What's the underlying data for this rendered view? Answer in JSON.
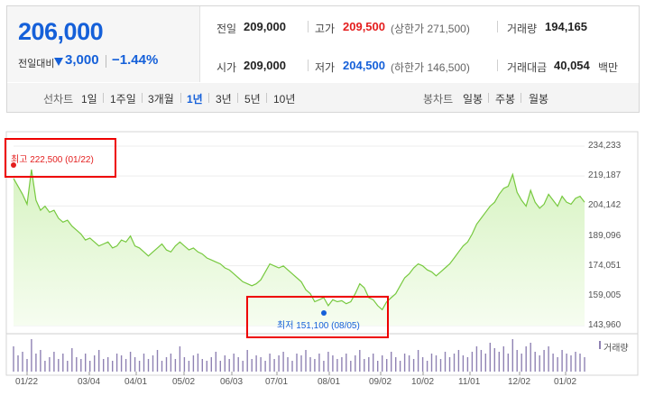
{
  "summary": {
    "price": "206,000",
    "change_label": "전일대비",
    "change_value": "3,000",
    "change_percent": "−1.44%",
    "prev_close_label": "전일",
    "prev_close": "209,000",
    "open_label": "시가",
    "open": "209,000",
    "high_label": "고가",
    "high": "209,500",
    "upper_limit": "(상한가 271,500)",
    "low_label": "저가",
    "low": "204,500",
    "lower_limit": "(하한가 146,500)",
    "volume_label": "거래량",
    "volume": "194,165",
    "amount_label": "거래대금",
    "amount": "40,054",
    "amount_unit": "백만"
  },
  "line_tabs": {
    "label": "선차트",
    "items": [
      "1일",
      "1주일",
      "3개월",
      "1년",
      "3년",
      "5년",
      "10년"
    ],
    "active": "1년"
  },
  "candle_tabs": {
    "label": "봉차트",
    "items": [
      "일봉",
      "주봉",
      "월봉"
    ]
  },
  "colors": {
    "up": "#e41e1e",
    "down": "#1560d9",
    "line": "#77c93f",
    "volume": "#8f82b3"
  },
  "chart_data": {
    "type": "area",
    "y_ticks": [
      "234,233",
      "219,187",
      "204,142",
      "189,096",
      "174,051",
      "159,005",
      "143,960"
    ],
    "ylim": [
      143960,
      234233
    ],
    "x_ticks": [
      "01/22",
      "03/04",
      "04/01",
      "05/02",
      "06/03",
      "07/01",
      "08/01",
      "09/02",
      "10/02",
      "11/01",
      "12/02",
      "01/02"
    ],
    "annotations": {
      "high": {
        "label": "최고",
        "value": "222,500",
        "date": "(01/22)"
      },
      "low": {
        "label": "최저",
        "value": "151,100",
        "date": "(08/05)"
      }
    },
    "volume_legend": "거래량",
    "series": [
      {
        "values": [
          218000,
          214000,
          210000,
          205000,
          222500,
          207000,
          202000,
          204000,
          201000,
          202000,
          198000,
          196000,
          197000,
          194000,
          192000,
          190000,
          187000,
          188000,
          186000,
          184000,
          185000,
          186000,
          183000,
          184000,
          187000,
          186000,
          189000,
          184000,
          183000,
          181000,
          179000,
          181000,
          183000,
          185000,
          182000,
          181000,
          184000,
          186000,
          184000,
          182000,
          183000,
          181000,
          180000,
          178000,
          177000,
          176000,
          175000,
          173000,
          172000,
          170000,
          168000,
          166000,
          165000,
          164000,
          165000,
          167000,
          171000,
          175000,
          174000,
          173000,
          174000,
          172000,
          170000,
          168000,
          166000,
          162000,
          160000,
          156000,
          157000,
          158000,
          154000,
          157000,
          156000,
          156500,
          155000,
          156000,
          160000,
          165000,
          163000,
          158000,
          157000,
          154000,
          152000,
          156000,
          158000,
          160000,
          164000,
          168000,
          170000,
          173000,
          175000,
          174000,
          172000,
          171000,
          169000,
          171000,
          173000,
          175000,
          178000,
          181000,
          184000,
          186000,
          190000,
          195000,
          198000,
          201000,
          204000,
          206000,
          210000,
          213000,
          214000,
          220000,
          211000,
          207000,
          204000,
          212000,
          206000,
          203000,
          205000,
          210000,
          207000,
          204000,
          209000,
          206000,
          205000,
          208000,
          209000,
          206000
        ],
        "volumes": [
          0.7,
          0.45,
          0.55,
          0.35,
          0.9,
          0.5,
          0.6,
          0.3,
          0.4,
          0.55,
          0.35,
          0.5,
          0.3,
          0.65,
          0.4,
          0.35,
          0.5,
          0.3,
          0.45,
          0.6,
          0.35,
          0.4,
          0.3,
          0.5,
          0.45,
          0.35,
          0.55,
          0.4,
          0.3,
          0.5,
          0.35,
          0.45,
          0.6,
          0.3,
          0.4,
          0.5,
          0.35,
          0.7,
          0.4,
          0.3,
          0.45,
          0.5,
          0.35,
          0.3,
          0.4,
          0.55,
          0.3,
          0.45,
          0.35,
          0.5,
          0.4,
          0.3,
          0.6,
          0.35,
          0.45,
          0.4,
          0.3,
          0.5,
          0.35,
          0.45,
          0.55,
          0.4,
          0.3,
          0.5,
          0.45,
          0.6,
          0.4,
          0.35,
          0.5,
          0.3,
          0.55,
          0.45,
          0.35,
          0.4,
          0.5,
          0.3,
          0.45,
          0.6,
          0.35,
          0.4,
          0.5,
          0.3,
          0.45,
          0.35,
          0.55,
          0.4,
          0.3,
          0.5,
          0.45,
          0.35,
          0.6,
          0.4,
          0.3,
          0.5,
          0.45,
          0.35,
          0.55,
          0.4,
          0.5,
          0.6,
          0.45,
          0.4,
          0.55,
          0.7,
          0.6,
          0.5,
          0.8,
          0.65,
          0.55,
          0.7,
          0.5,
          0.9,
          0.6,
          0.5,
          0.7,
          0.8,
          0.55,
          0.45,
          0.6,
          0.7,
          0.5,
          0.4,
          0.6,
          0.5,
          0.45,
          0.55,
          0.5,
          0.4
        ]
      }
    ]
  }
}
